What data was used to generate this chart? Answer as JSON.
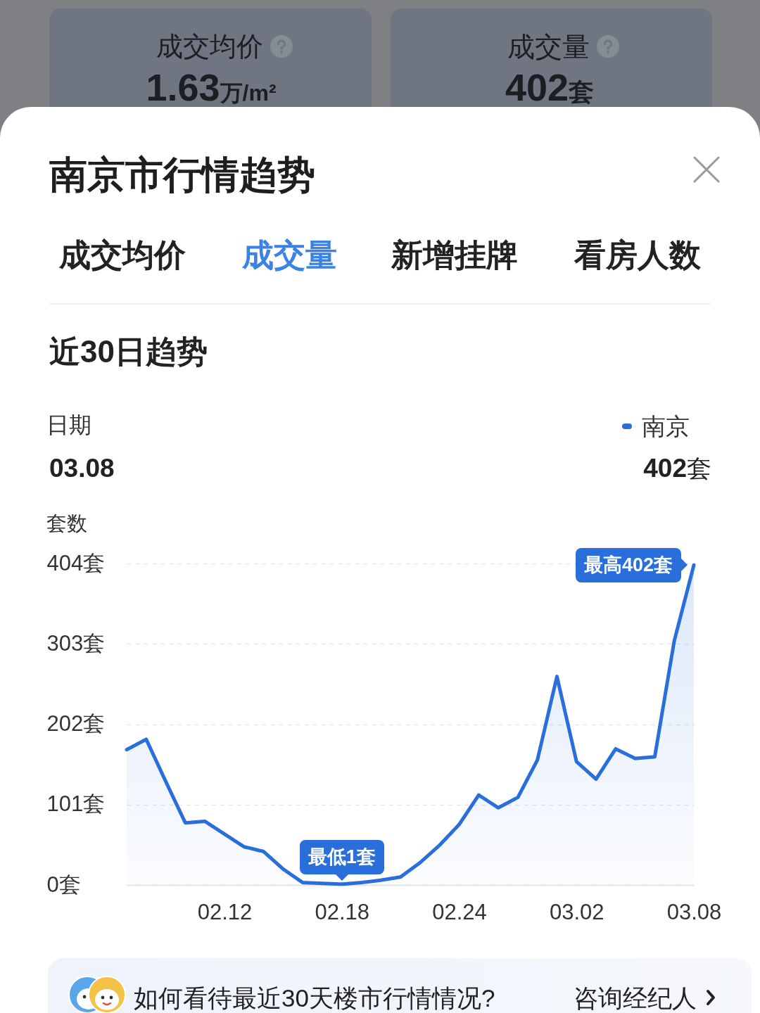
{
  "chart_data": {
    "type": "area",
    "title": "南京市行情趋势",
    "subtitle": "近30日趋势",
    "ylabel": "套数",
    "x": [
      "--02-07",
      "--02-08",
      "--02-09",
      "--02-10",
      "--02-11",
      "--02-12",
      "--02-13",
      "--02-14",
      "--02-15",
      "--02-16",
      "--02-17",
      "--02-18",
      "--02-19",
      "--02-20",
      "--02-21",
      "--02-22",
      "--02-23",
      "--02-24",
      "--02-25",
      "--02-26",
      "--02-27",
      "--02-28",
      "--03-01",
      "--03-02",
      "--03-03",
      "--03-04",
      "--03-05",
      "--03-06",
      "--03-07",
      "--03-08"
    ],
    "series": [
      {
        "name": "南京",
        "color": "#2a6edc",
        "values": [
          170,
          183,
          130,
          78,
          80,
          64,
          48,
          42,
          20,
          3,
          2,
          1,
          3,
          6,
          10,
          28,
          50,
          76,
          113,
          97,
          110,
          157,
          262,
          155,
          133,
          171,
          159,
          161,
          307,
          402
        ]
      }
    ],
    "xlim": [
      "--02-07",
      "--03-08"
    ],
    "xticks": [
      {
        "value": "--02-12",
        "label": "02.12"
      },
      {
        "value": "--02-18",
        "label": "02.18"
      },
      {
        "value": "--02-24",
        "label": "02.24"
      },
      {
        "value": "--03-02",
        "label": "03.02"
      },
      {
        "value": "--03-08",
        "label": "03.08"
      }
    ],
    "ylim": [
      0,
      404
    ],
    "yticks": [
      {
        "value": 0,
        "label": "0套"
      },
      {
        "value": 101,
        "label": "101套"
      },
      {
        "value": 202,
        "label": "202套"
      },
      {
        "value": 303,
        "label": "303套"
      },
      {
        "value": 404,
        "label": "404套"
      }
    ],
    "grid": "y",
    "legend": "top right",
    "annotations": [
      "成交均价",
      "1.63万/m²",
      "成交量",
      "402套",
      "成交均价",
      "成交量",
      "新增挂牌",
      "看房人数",
      "日期",
      "03.08",
      "402套",
      "如何看待最近30天楼市行情情况?",
      "咨询经纪人",
      {
        "text": "最高402套",
        "x": "--03-08",
        "y": 402
      },
      {
        "text": "最低1套",
        "x": "--02-18",
        "y": 1
      }
    ]
  }
}
